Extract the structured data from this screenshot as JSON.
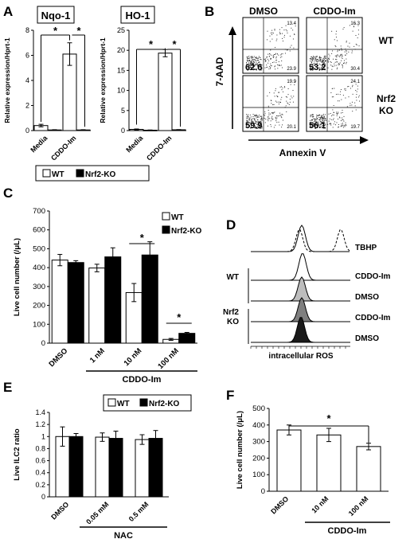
{
  "chart_data": [
    {
      "panel": "A",
      "type": "bar",
      "title": "Nqo-1",
      "ylabel": "Relative expression/Hprt-1",
      "ylim": [
        0,
        8
      ],
      "yticks": [
        0,
        2,
        4,
        6,
        8
      ],
      "categories": [
        "Media",
        "CDDO-Im"
      ],
      "series": [
        {
          "name": "WT",
          "values": [
            0.4,
            6.1
          ],
          "errors": [
            0.1,
            0.9
          ]
        },
        {
          "name": "Nrf2-KO",
          "values": [
            0.05,
            0.05
          ],
          "errors": [
            0.02,
            0.02
          ]
        }
      ],
      "annotations": [
        "*",
        "*"
      ]
    },
    {
      "panel": "A",
      "type": "bar",
      "title": "HO-1",
      "ylabel": "Relative expression/Hprt-1",
      "ylim": [
        0,
        25
      ],
      "yticks": [
        0,
        5,
        10,
        15,
        20,
        25
      ],
      "categories": [
        "Media",
        "CDDO-Im"
      ],
      "series": [
        {
          "name": "WT",
          "values": [
            0.3,
            19.3
          ],
          "errors": [
            0.1,
            0.9
          ]
        },
        {
          "name": "Nrf2-KO",
          "values": [
            0.1,
            0.2
          ],
          "errors": [
            0.05,
            0.05
          ]
        }
      ],
      "annotations": [
        "*",
        "*"
      ]
    },
    {
      "panel": "B",
      "type": "scatter",
      "columns": [
        "DMSO",
        "CDDO-Im"
      ],
      "rows": [
        "WT",
        "Nrf2 KO"
      ],
      "xlabel": "Annexin V",
      "ylabel": "7-AAD",
      "quadrants": [
        {
          "row": "WT",
          "column": "DMSO",
          "ul": "",
          "ur": "13.4",
          "ll": "62.6",
          "lr": "23.9"
        },
        {
          "row": "WT",
          "column": "CDDO-Im",
          "ul": "",
          "ur": "16.3",
          "ll": "53.2",
          "lr": "30.4"
        },
        {
          "row": "Nrf2 KO",
          "column": "DMSO",
          "ul": "",
          "ur": "19.9",
          "ll": "59.9",
          "lr": "20.1"
        },
        {
          "row": "Nrf2 KO",
          "column": "CDDO-Im",
          "ul": "",
          "ur": "24.1",
          "ll": "56.1",
          "lr": "19.7"
        }
      ]
    },
    {
      "panel": "C",
      "type": "bar",
      "ylabel": "Live cell number (/μL)",
      "ylim": [
        0,
        700
      ],
      "yticks": [
        0,
        100,
        200,
        300,
        400,
        500,
        600,
        700
      ],
      "categories": [
        "DMSO",
        "1 nM",
        "10 nM",
        "100 nM"
      ],
      "group_label": "CDDO-Im",
      "series": [
        {
          "name": "WT",
          "values": [
            440,
            398,
            268,
            20
          ],
          "errors": [
            30,
            20,
            48,
            5
          ]
        },
        {
          "name": "Nrf2-KO",
          "values": [
            427,
            457,
            467,
            52
          ],
          "errors": [
            10,
            48,
            70,
            5
          ]
        }
      ],
      "annotations": [
        "*",
        "*"
      ]
    },
    {
      "panel": "D",
      "type": "area",
      "xlabel": "intracellular ROS",
      "tracks": [
        {
          "label": "TBHP",
          "group": ""
        },
        {
          "label": "CDDO-Im",
          "group": "WT"
        },
        {
          "label": "DMSO",
          "group": "WT"
        },
        {
          "label": "CDDO-Im",
          "group": "Nrf2 KO"
        },
        {
          "label": "DMSO",
          "group": "Nrf2 KO"
        }
      ],
      "groups": [
        "WT",
        "Nrf2 KO"
      ]
    },
    {
      "panel": "E",
      "type": "bar",
      "ylabel": "Live ILC2 ratio",
      "ylim": [
        0,
        1.4
      ],
      "yticks": [
        "0",
        "0.2",
        "0.4",
        "0.6",
        "0.8",
        "1",
        "1.2",
        "1.4"
      ],
      "categories": [
        "DMSO",
        "0.05 mM",
        "0.5 mM"
      ],
      "group_label": "NAC",
      "series": [
        {
          "name": "WT",
          "values": [
            1.0,
            0.99,
            0.95
          ],
          "errors": [
            0.16,
            0.07,
            0.08
          ]
        },
        {
          "name": "Nrf2-KO",
          "values": [
            1.0,
            0.97,
            0.97
          ],
          "errors": [
            0.05,
            0.12,
            0.13
          ]
        }
      ]
    },
    {
      "panel": "F",
      "type": "bar",
      "ylabel": "Live cell number (/μL)",
      "ylim": [
        0,
        500
      ],
      "yticks": [
        0,
        100,
        200,
        300,
        400,
        500
      ],
      "categories": [
        "DMSO",
        "10 nM",
        "100 nM"
      ],
      "group_label": "CDDO-Im",
      "series": [
        {
          "name": "",
          "values": [
            370,
            340,
            270
          ],
          "errors": [
            30,
            40,
            20
          ]
        }
      ],
      "annotations": [
        "*"
      ]
    }
  ],
  "panels": {
    "a": "A",
    "b": "B",
    "c": "C",
    "d": "D",
    "e": "E",
    "f": "F"
  },
  "legend": {
    "wt": "WT",
    "ko": "Nrf2-KO"
  }
}
